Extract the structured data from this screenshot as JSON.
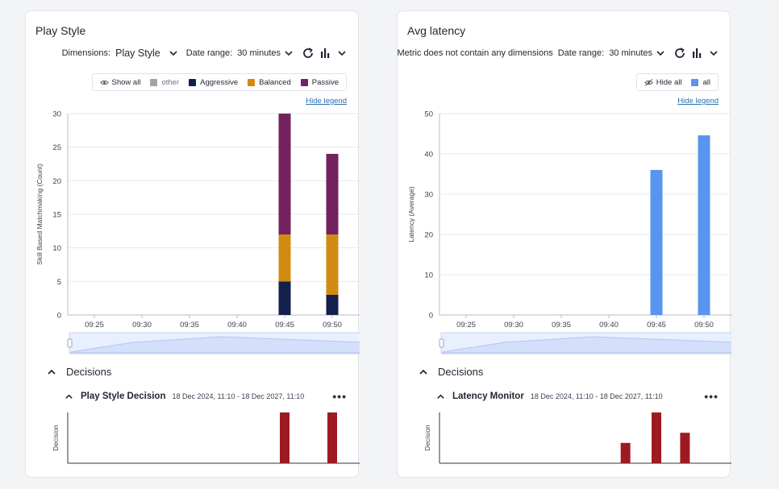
{
  "left_panel": {
    "title": "Play Style",
    "toolbar": {
      "dimensions_label": "Dimensions:",
      "dimensions_value": "Play Style",
      "date_range_label": "Date range:",
      "date_range_value": "30 minutes"
    },
    "legend": {
      "toggle_label": "Show all",
      "items": [
        {
          "label": "other",
          "color": "#a3a3a3",
          "muted": true
        },
        {
          "label": "Aggressive",
          "color": "#13204d"
        },
        {
          "label": "Balanced",
          "color": "#d18b13"
        },
        {
          "label": "Passive",
          "color": "#73225f"
        }
      ]
    },
    "hide_legend_label": "Hide legend",
    "decisions": {
      "header": "Decisions",
      "row_name": "Play Style Decision",
      "row_range": "18 Dec 2024, 11:10 - 18 Dec 2027, 11:10",
      "axis_label": "Decision"
    }
  },
  "right_panel": {
    "title": "Avg latency",
    "toolbar": {
      "metric_note": "Metric does not contain any dimensions",
      "date_range_label": "Date range:",
      "date_range_value": "30 minutes"
    },
    "legend": {
      "toggle_label": "Hide all",
      "items": [
        {
          "label": "all",
          "color": "#5795ee"
        }
      ]
    },
    "hide_legend_label": "Hide legend",
    "decisions": {
      "header": "Decisions",
      "row_name": "Latency Monitor",
      "row_range": "18 Dec 2024, 11:10 - 18 Dec 2027, 11:10",
      "axis_label": "Decision"
    }
  },
  "chart_data": [
    {
      "type": "bar",
      "stacked": true,
      "categories": [
        "09:25",
        "09:30",
        "09:35",
        "09:40",
        "09:45",
        "09:50"
      ],
      "series": [
        {
          "name": "other",
          "values": [
            0,
            0,
            0,
            0,
            0,
            0
          ],
          "color": "#a3a3a3"
        },
        {
          "name": "Aggressive",
          "values": [
            0,
            0,
            0,
            0,
            5,
            3
          ],
          "color": "#13204d"
        },
        {
          "name": "Balanced",
          "values": [
            0,
            0,
            0,
            0,
            7,
            9
          ],
          "color": "#d18b13"
        },
        {
          "name": "Passive",
          "values": [
            0,
            0,
            0,
            0,
            18,
            12
          ],
          "color": "#73225f"
        }
      ],
      "ylabel": "Skill Based Matchmaking (Count)",
      "yticks": [
        0,
        5,
        10,
        15,
        20,
        25,
        30
      ],
      "ylim": [
        0,
        30
      ],
      "grid": true,
      "legend_position": "top-right"
    },
    {
      "type": "bar",
      "categories": [
        "09:25",
        "09:30",
        "09:35",
        "09:40",
        "09:45",
        "09:50"
      ],
      "series": [
        {
          "name": "all",
          "values": [
            0,
            0,
            0,
            0,
            36,
            44.6
          ],
          "color": "#5795ee"
        }
      ],
      "ylabel": "Latency (Average)",
      "yticks": [
        0,
        10,
        20,
        30,
        40,
        50
      ],
      "ylim": [
        0,
        50
      ],
      "grid": true,
      "legend_position": "top-right"
    }
  ],
  "decision_marks": [
    {
      "times": [
        4,
        5
      ],
      "heights": [
        1,
        1
      ],
      "color": "#9d1b20"
    },
    {
      "times": [
        3.35,
        4,
        4.6
      ],
      "heights": [
        0.4,
        1,
        0.6
      ],
      "color": "#9d1b20"
    }
  ]
}
